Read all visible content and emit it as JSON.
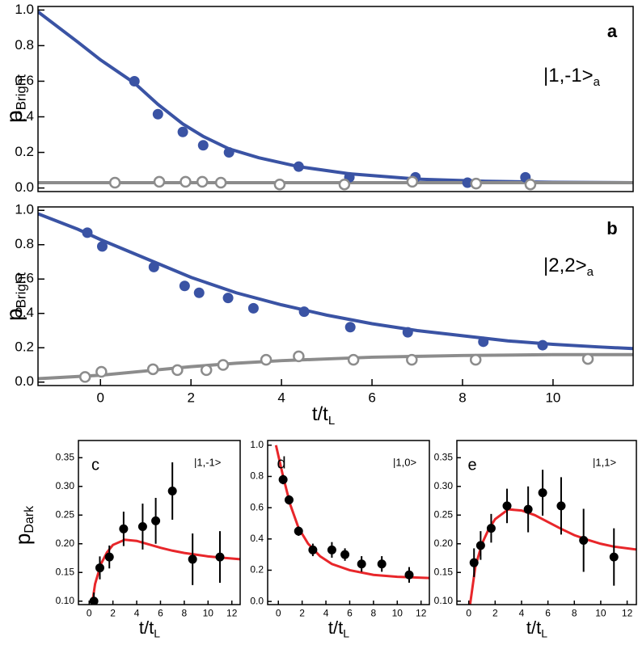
{
  "chart_data": [
    {
      "type": "scatter",
      "label": "a",
      "state": "|1,-1>",
      "state_sub": "a",
      "ylabel": "p",
      "ylabel_sub": "Bright",
      "xlim": [
        -1.38,
        11.77
      ],
      "ylim": [
        -0.02,
        1.02
      ],
      "yticks": [
        {
          "value": 0,
          "label": "0.0"
        },
        0.2,
        0.4,
        0.6,
        0.8,
        {
          "value": 1,
          "label": "1.0"
        }
      ],
      "series": [
        {
          "style": "line",
          "color": "#3a53a4",
          "x": [
            -1.38,
            -0.5,
            0,
            0.75,
            1.27,
            1.82,
            2.27,
            2.84,
            3.5,
            4.38,
            5.5,
            7,
            8.5,
            10,
            11.77
          ],
          "values": [
            0.99,
            0.82,
            0.72,
            0.59,
            0.47,
            0.36,
            0.29,
            0.22,
            0.17,
            0.12,
            0.08,
            0.05,
            0.038,
            0.032,
            0.03
          ]
        },
        {
          "style": "line",
          "color": "#8c8c8c",
          "x": [
            -1.38,
            11.77
          ],
          "values": [
            0.03,
            0.03
          ]
        },
        {
          "style": "markers",
          "marker": "filled",
          "color": "#3a53a4",
          "x": [
            0.75,
            1.27,
            1.82,
            2.27,
            2.84,
            4.38,
            5.5,
            6.96,
            8.11,
            9.39
          ],
          "values": [
            0.6,
            0.415,
            0.315,
            0.24,
            0.2,
            0.12,
            0.06,
            0.06,
            0.03,
            0.06
          ],
          "errors": [
            0.025,
            0.025,
            0.025,
            0.025,
            0.025,
            0.025,
            0.02,
            0.02,
            0.02,
            0.025
          ]
        },
        {
          "style": "markers",
          "marker": "open",
          "color": "#8c8c8c",
          "x": [
            0.32,
            1.3,
            1.88,
            2.25,
            2.66,
            3.96,
            5.39,
            6.89,
            8.3,
            9.5
          ],
          "values": [
            0.03,
            0.035,
            0.035,
            0.035,
            0.03,
            0.02,
            0.02,
            0.035,
            0.025,
            0.02
          ]
        }
      ]
    },
    {
      "type": "scatter",
      "label": "b",
      "state": "|2,2>",
      "state_sub": "a",
      "ylabel": "p",
      "ylabel_sub": "Bright",
      "xlabel": "t/t",
      "xlabel_sub": "L",
      "xlim": [
        -1.38,
        11.77
      ],
      "ylim": [
        -0.02,
        1.02
      ],
      "xticks": [
        0,
        2,
        4,
        6,
        8,
        10
      ],
      "yticks": [
        {
          "value": 0,
          "label": "0.0"
        },
        0.2,
        0.4,
        0.6,
        0.8,
        {
          "value": 1,
          "label": "1.0"
        }
      ],
      "series": [
        {
          "style": "line",
          "color": "#3a53a4",
          "x": [
            -1.38,
            -0.5,
            0,
            1,
            2,
            3,
            4,
            5,
            6,
            7,
            8,
            9,
            10,
            11,
            11.77
          ],
          "values": [
            0.98,
            0.89,
            0.83,
            0.72,
            0.61,
            0.52,
            0.45,
            0.39,
            0.34,
            0.3,
            0.27,
            0.24,
            0.22,
            0.205,
            0.195
          ]
        },
        {
          "style": "line",
          "color": "#8c8c8c",
          "x": [
            -1.38,
            0,
            1,
            2,
            3,
            4,
            5,
            6,
            7,
            8,
            10,
            11.77
          ],
          "values": [
            0.02,
            0.04,
            0.065,
            0.09,
            0.11,
            0.125,
            0.135,
            0.145,
            0.15,
            0.155,
            0.16,
            0.16
          ]
        },
        {
          "style": "markers",
          "marker": "filled",
          "color": "#3a53a4",
          "x": [
            -0.29,
            0.04,
            1.18,
            1.86,
            2.18,
            2.82,
            3.38,
            4.5,
            5.52,
            6.79,
            8.46,
            9.77
          ],
          "values": [
            0.87,
            0.79,
            0.67,
            0.56,
            0.52,
            0.49,
            0.43,
            0.41,
            0.32,
            0.29,
            0.235,
            0.215
          ],
          "errors": [
            0.025,
            0.025,
            0.025,
            0.025,
            0.025,
            0.025,
            0.025,
            0.025,
            0.025,
            0.025,
            0.025,
            0.025
          ]
        },
        {
          "style": "markers",
          "marker": "open",
          "color": "#8c8c8c",
          "x": [
            -0.34,
            0.02,
            1.16,
            1.7,
            2.34,
            2.71,
            3.66,
            4.38,
            5.59,
            6.88,
            8.29,
            10.77
          ],
          "values": [
            0.03,
            0.06,
            0.075,
            0.07,
            0.07,
            0.1,
            0.13,
            0.15,
            0.13,
            0.13,
            0.13,
            0.135
          ]
        }
      ]
    },
    {
      "type": "scatter",
      "label": "c",
      "state": "|1,-1>",
      "ylabel": "p",
      "ylabel_sub": "Dark",
      "xlabel": "t/t",
      "xlabel_sub": "L",
      "xlim": [
        -0.9,
        12.7
      ],
      "ylim": [
        0.094,
        0.38
      ],
      "xticks": [
        0,
        2,
        4,
        6,
        8,
        10,
        12
      ],
      "yticks": [
        {
          "value": 0.1,
          "label": "0.10"
        },
        0.15,
        {
          "value": 0.2,
          "label": "0.20"
        },
        0.25,
        {
          "value": 0.3,
          "label": "0.30"
        },
        0.35
      ],
      "series": [
        {
          "style": "line",
          "color": "#e8262a",
          "x": [
            0.25,
            0.5,
            1,
            1.5,
            2,
            3,
            4,
            5,
            6,
            7,
            8,
            9,
            10,
            11,
            12.7
          ],
          "values": [
            0.095,
            0.13,
            0.165,
            0.185,
            0.198,
            0.207,
            0.205,
            0.199,
            0.193,
            0.188,
            0.184,
            0.181,
            0.178,
            0.176,
            0.173
          ]
        },
        {
          "style": "markers",
          "marker": "filled",
          "color": "#000000",
          "x": [
            0.4,
            0.9,
            1.7,
            2.9,
            4.5,
            5.6,
            7,
            8.7,
            11
          ],
          "values": [
            0.1,
            0.158,
            0.177,
            0.226,
            0.23,
            0.24,
            0.292,
            0.173,
            0.177
          ],
          "errors": [
            0.015,
            0.02,
            0.02,
            0.03,
            0.04,
            0.04,
            0.05,
            0.045,
            0.045
          ]
        }
      ]
    },
    {
      "type": "scatter",
      "label": "d",
      "state": "|1,0>",
      "xlabel": "t/t",
      "xlabel_sub": "L",
      "xlim": [
        -0.9,
        12.7
      ],
      "ylim": [
        -0.02,
        1.03
      ],
      "xticks": [
        0,
        2,
        4,
        6,
        8,
        10,
        12
      ],
      "yticks": [
        {
          "value": 0,
          "label": "0.0"
        },
        0.2,
        0.4,
        0.6,
        0.8,
        {
          "value": 1,
          "label": "1.0"
        }
      ],
      "series": [
        {
          "style": "line",
          "color": "#e8262a",
          "x": [
            -0.2,
            0.4,
            1,
            1.7,
            2.5,
            3.5,
            4.5,
            6,
            8,
            10,
            12.7
          ],
          "values": [
            1,
            0.8,
            0.62,
            0.47,
            0.37,
            0.29,
            0.24,
            0.2,
            0.17,
            0.158,
            0.15
          ]
        },
        {
          "style": "markers",
          "marker": "filled",
          "color": "#000000",
          "x": [
            0.4,
            0.9,
            1.7,
            2.9,
            4.5,
            5.6,
            7,
            8.7,
            11
          ],
          "values": [
            0.78,
            0.65,
            0.45,
            0.33,
            0.33,
            0.3,
            0.24,
            0.24,
            0.17
          ],
          "errors": [
            0.03,
            0.03,
            0.03,
            0.04,
            0.05,
            0.04,
            0.05,
            0.05,
            0.05
          ]
        }
      ]
    },
    {
      "type": "scatter",
      "label": "e",
      "state": "|1,1>",
      "xlabel": "t/t",
      "xlabel_sub": "L",
      "xlim": [
        -0.9,
        12.7
      ],
      "ylim": [
        0.094,
        0.38
      ],
      "xticks": [
        0,
        2,
        4,
        6,
        8,
        10,
        12
      ],
      "yticks": [
        {
          "value": 0.1,
          "label": "0.10"
        },
        0.15,
        {
          "value": 0.2,
          "label": "0.20"
        },
        0.25,
        {
          "value": 0.3,
          "label": "0.30"
        },
        0.35
      ],
      "series": [
        {
          "style": "line",
          "color": "#e8262a",
          "x": [
            0.1,
            0.5,
            1,
            1.5,
            2,
            3,
            4,
            5,
            6,
            7,
            8,
            9,
            10,
            11,
            12.7
          ],
          "values": [
            0.094,
            0.16,
            0.2,
            0.225,
            0.243,
            0.26,
            0.258,
            0.25,
            0.238,
            0.226,
            0.215,
            0.207,
            0.2,
            0.195,
            0.19
          ]
        },
        {
          "style": "markers",
          "marker": "filled",
          "color": "#000000",
          "x": [
            0.4,
            0.9,
            1.7,
            2.9,
            4.5,
            5.6,
            7,
            8.7,
            11
          ],
          "values": [
            0.167,
            0.197,
            0.227,
            0.266,
            0.26,
            0.289,
            0.266,
            0.206,
            0.177
          ],
          "errors": [
            0.025,
            0.025,
            0.025,
            0.03,
            0.04,
            0.04,
            0.05,
            0.055,
            0.05
          ]
        }
      ]
    }
  ]
}
